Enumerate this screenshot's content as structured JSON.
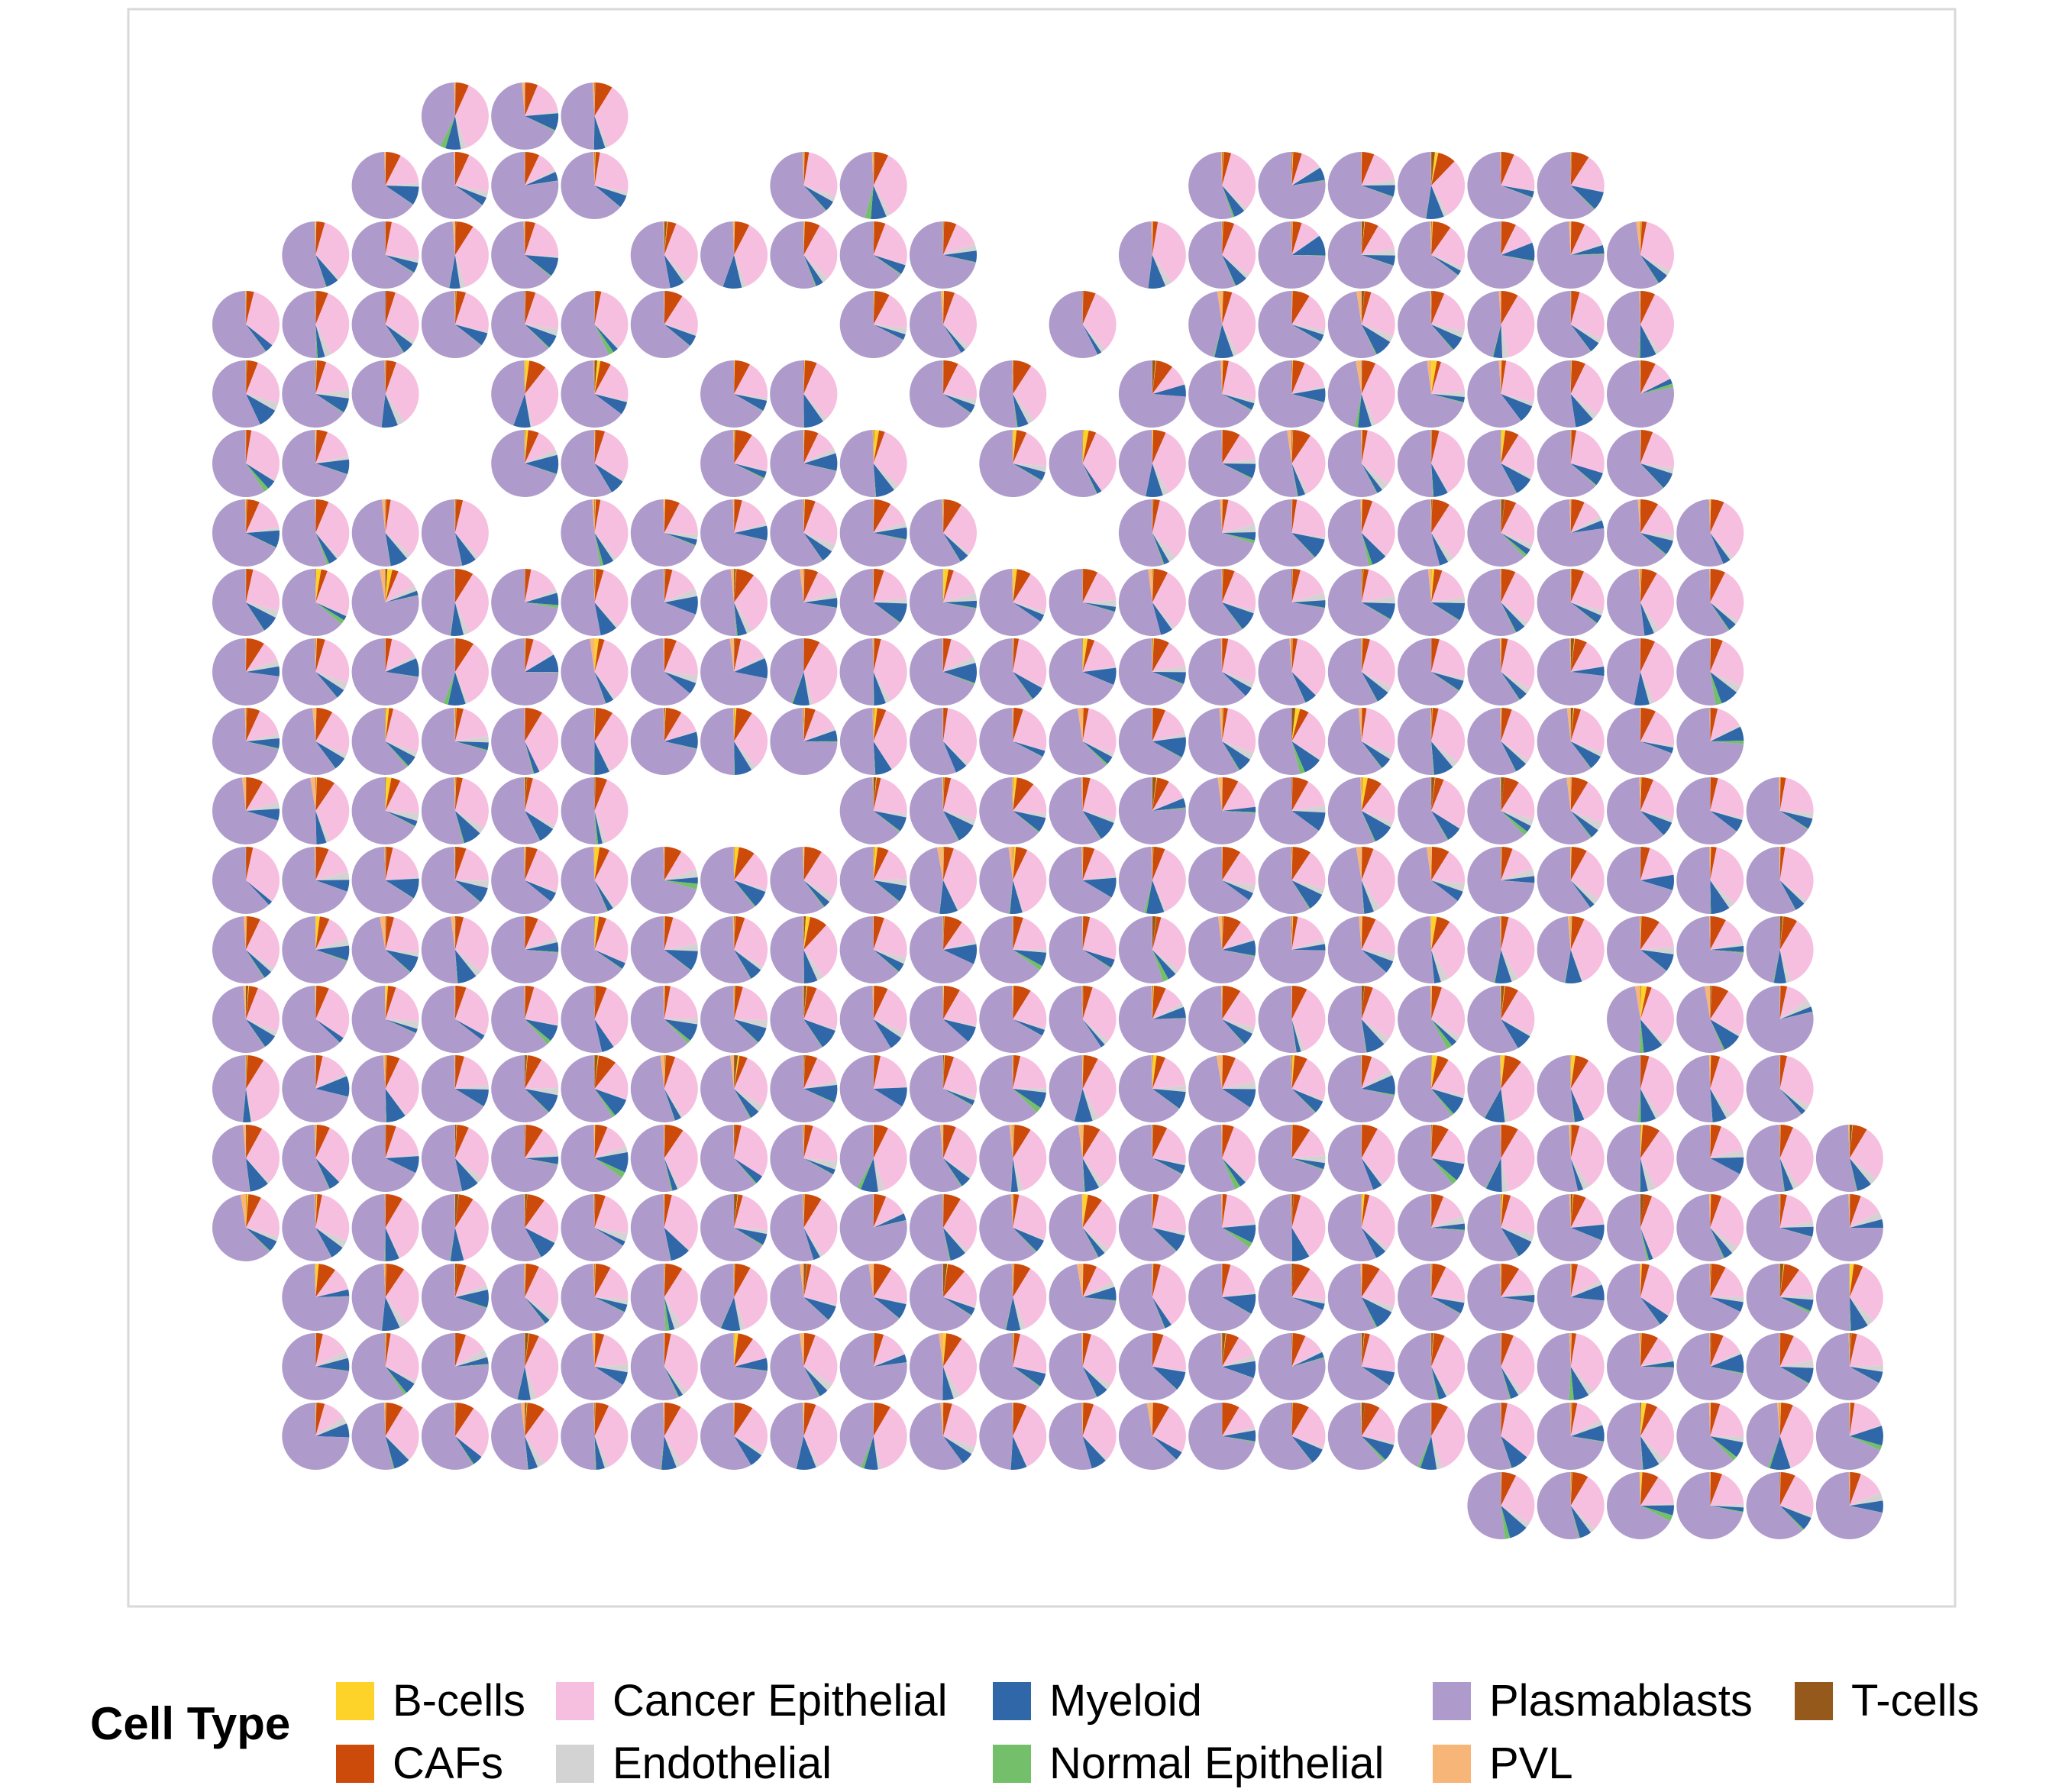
{
  "chart_data": {
    "type": "scatter",
    "subtype": "spatial scatter-pie",
    "title": "",
    "xlabel": "",
    "ylabel": "",
    "grid": false,
    "legend": {
      "title": "Cell Type",
      "placement": "bottom",
      "entries": [
        {
          "label": "B-cells",
          "color": "#FDD32A"
        },
        {
          "label": "CAFs",
          "color": "#CC4A0A"
        },
        {
          "label": "Cancer Epithelial",
          "color": "#F7BFDF"
        },
        {
          "label": "Endothelial",
          "color": "#D3D3D3"
        },
        {
          "label": "Myeloid",
          "color": "#2F67A8"
        },
        {
          "label": "Normal Epithelial",
          "color": "#73BF6A"
        },
        {
          "label": "Plasmablasts",
          "color": "#AE9BCB"
        },
        {
          "label": "PVL",
          "color": "#F8B578"
        },
        {
          "label": "T-cells",
          "color": "#94591B"
        }
      ]
    },
    "columns": 24,
    "rows": 21,
    "row_spans": [
      [
        [
          3,
          5
        ]
      ],
      [
        [
          2,
          5
        ],
        [
          8,
          9
        ],
        [
          14,
          19
        ]
      ],
      [
        [
          1,
          4
        ],
        [
          6,
          10
        ],
        [
          13,
          20
        ]
      ],
      [
        [
          0,
          6
        ],
        [
          9,
          10
        ],
        [
          12,
          12
        ],
        [
          14,
          20
        ]
      ],
      [
        [
          0,
          2
        ],
        [
          4,
          5
        ],
        [
          7,
          8
        ],
        [
          10,
          11
        ],
        [
          13,
          20
        ]
      ],
      [
        [
          0,
          1
        ],
        [
          4,
          5
        ],
        [
          7,
          9
        ],
        [
          11,
          20
        ]
      ],
      [
        [
          0,
          3
        ],
        [
          5,
          10
        ],
        [
          13,
          21
        ]
      ],
      [
        [
          0,
          21
        ]
      ],
      [
        [
          0,
          21
        ]
      ],
      [
        [
          0,
          21
        ]
      ],
      [
        [
          0,
          5
        ],
        [
          9,
          22
        ]
      ],
      [
        [
          0,
          22
        ]
      ],
      [
        [
          0,
          22
        ]
      ],
      [
        [
          0,
          18
        ],
        [
          20,
          22
        ]
      ],
      [
        [
          0,
          22
        ]
      ],
      [
        [
          0,
          23
        ]
      ],
      [
        [
          0,
          23
        ]
      ],
      [
        [
          1,
          23
        ]
      ],
      [
        [
          1,
          23
        ]
      ],
      [
        [
          1,
          23
        ]
      ],
      [
        [
          18,
          23
        ]
      ]
    ]
  }
}
